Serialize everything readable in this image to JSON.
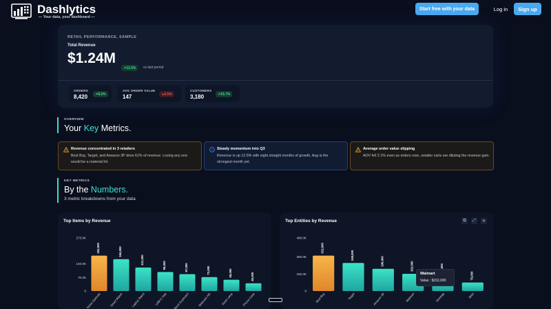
{
  "nav": {
    "brand": "Dashlytics",
    "tagline": "— Your data, your dashboard —",
    "cta_label": "Start free with your data",
    "login_label": "Log in",
    "signup_label": "Sign up"
  },
  "hero": {
    "label": "RETAIL PERFORMANCE, SAMPLE",
    "subtitle": "Total Revenue",
    "value": "$1.24M",
    "change": "↗12.5%",
    "comparison": "vs last period",
    "stats": [
      {
        "label": "ORDERS",
        "value": "8,420",
        "change": "↗8.2%",
        "trend": "up"
      },
      {
        "label": "AVG ORDER VALUE",
        "value": "147",
        "change": "↘2.1%",
        "trend": "down"
      },
      {
        "label": "CUSTOMERS",
        "value": "3,180",
        "change": "↗15.7%",
        "trend": "up"
      }
    ]
  },
  "overview": {
    "kicker": "OVERVIEW",
    "title_prefix": "Your ",
    "title_highlight": "Key",
    "title_suffix": " Metrics."
  },
  "insights": [
    {
      "icon": "warning-icon",
      "tone": "amber",
      "title": "Revenue concentrated in 3 retailers",
      "text": "Best Buy, Target, and Amazon 3P drive 61% of revenue. Losing any one would be a material hit."
    },
    {
      "icon": "info-icon",
      "tone": "blue",
      "title": "Steady momentum into Q3",
      "text": "Revenue is up 12.5% with eight straight months of growth, Aug is the strongest month yet."
    },
    {
      "icon": "warning-icon",
      "tone": "amber",
      "title": "Average order value slipping",
      "text": "AOV fell 2.1% even as orders rose, smaller carts are diluting the revenue gain."
    }
  ],
  "numbers": {
    "kicker": "KEY METRICS",
    "title_prefix": "By the ",
    "title_highlight": "Numbers.",
    "subtitle": "3 metric breakdowns from your data"
  },
  "colors": {
    "accent": "#3fe0d0",
    "primary_button": "#4aa9ef",
    "bar_highlight": "#f2a73b",
    "bar_normal": "#2fd3b8",
    "up": "#3fdc93",
    "down": "#ff5a62"
  },
  "chart_data": [
    {
      "type": "bar",
      "title": "Top Items by Revenue",
      "categories": [
        "Noise Earbuds",
        "Smart Watch",
        "Laptop Stand",
        "USB-C Hub",
        "Mech Keyboard",
        "Webcam HD",
        "Desk Lamp",
        "Phone Case"
      ],
      "values": [
        182000,
        164000,
        121000,
        98000,
        87000,
        72000,
        58000,
        40000
      ],
      "value_labels": [
        "182,000",
        "164,000",
        "121,000",
        "98,000",
        "87,000",
        "72,000",
        "58,000",
        "40,000"
      ],
      "y_ticks": [
        "0",
        "70.0K",
        "140.0K",
        "273.0K"
      ],
      "y_tick_values": [
        0,
        70000,
        140000,
        273000
      ],
      "ylim": [
        0,
        273000
      ],
      "highlight_index": 0
    },
    {
      "type": "bar",
      "title": "Top Entities by Revenue",
      "categories": [
        "Best Buy",
        "Target",
        "Amazon 3P",
        "Walmart",
        "Newegg",
        "B&H"
      ],
      "values": [
        312000,
        248000,
        196000,
        152000,
        130000,
        75000
      ],
      "value_labels": [
        "312,000",
        "248,000",
        "196,000",
        "152,000",
        "130,000",
        "75,000"
      ],
      "y_ticks": [
        "0",
        "150.0K",
        "300.0K",
        "468.0K"
      ],
      "y_tick_values": [
        0,
        150000,
        300000,
        468000
      ],
      "ylim": [
        0,
        468000
      ],
      "highlight_index": 0,
      "tooltip": {
        "title": "Walmart",
        "value": "Value : $152,000"
      }
    }
  ]
}
